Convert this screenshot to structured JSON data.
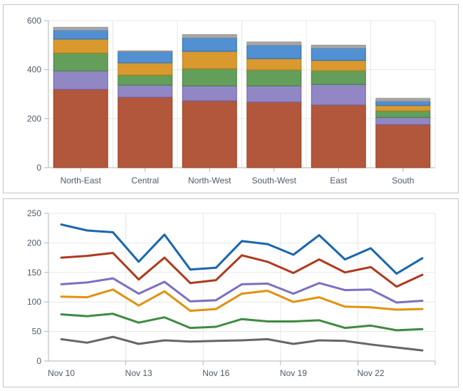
{
  "app": {
    "background": "#ffffff",
    "panel_border": "#c4c4c4",
    "gridline_color": "#e7e7e7",
    "axis_line_color": "#b5b5b5",
    "tick_color": "#b5b5b5",
    "label_color": "#4d5b6b",
    "label_font_size": 12
  },
  "chart_data": [
    {
      "type": "bar",
      "stacked": true,
      "title": "",
      "legend": "none",
      "grid": true,
      "categories": [
        "North-East",
        "Central",
        "North-West",
        "South-West",
        "East",
        "South"
      ],
      "series": [
        {
          "name": "rust",
          "color": "#b2573b",
          "border": "#99401e",
          "values": [
            320,
            288,
            273,
            268,
            256,
            176
          ]
        },
        {
          "name": "purple",
          "color": "#9187c4",
          "border": "#6f63ad",
          "values": [
            75,
            49,
            61,
            66,
            84,
            29
          ]
        },
        {
          "name": "green",
          "color": "#649e5b",
          "border": "#437e3c",
          "values": [
            73,
            41,
            70,
            65,
            56,
            27
          ]
        },
        {
          "name": "orange",
          "color": "#d9992f",
          "border": "#b97c13",
          "values": [
            57,
            50,
            71,
            46,
            42,
            22
          ]
        },
        {
          "name": "blue",
          "color": "#5090d3",
          "border": "#2e6cb4",
          "values": [
            36,
            45,
            55,
            55,
            50,
            17
          ]
        },
        {
          "name": "gray",
          "color": "#a8a8a8",
          "border": "#909090",
          "values": [
            12,
            4,
            13,
            13,
            12,
            12
          ]
        }
      ],
      "totals": [
        573,
        477,
        543,
        513,
        500,
        283
      ],
      "xlabel": "",
      "ylabel": "",
      "ylim": [
        0,
        600
      ],
      "yticks": [
        0,
        200,
        400,
        600
      ]
    },
    {
      "type": "line",
      "title": "",
      "legend": "none",
      "grid": true,
      "x": [
        "Nov 10",
        "Nov 11",
        "Nov 12",
        "Nov 13",
        "Nov 14",
        "Nov 15",
        "Nov 16",
        "Nov 17",
        "Nov 18",
        "Nov 19",
        "Nov 20",
        "Nov 21",
        "Nov 22",
        "Nov 23",
        "Nov 24"
      ],
      "xtick_labels": [
        "Nov 10",
        "Nov 13",
        "Nov 16",
        "Nov 19",
        "Nov 22"
      ],
      "xtick_label_step": 3,
      "series": [
        {
          "name": "blue",
          "color": "#1a66ae",
          "values": [
            231,
            221,
            218,
            168,
            214,
            155,
            158,
            203,
            198,
            180,
            213,
            172,
            191,
            148,
            174
          ]
        },
        {
          "name": "red",
          "color": "#ae3a1d",
          "values": [
            175,
            178,
            183,
            138,
            175,
            132,
            137,
            179,
            168,
            149,
            172,
            150,
            159,
            126,
            146
          ]
        },
        {
          "name": "purple",
          "color": "#7e6fc0",
          "values": [
            130,
            133,
            140,
            114,
            134,
            101,
            103,
            130,
            131,
            114,
            132,
            120,
            121,
            99,
            102
          ]
        },
        {
          "name": "orange",
          "color": "#e2920f",
          "values": [
            109,
            108,
            121,
            94,
            118,
            85,
            88,
            114,
            119,
            100,
            108,
            92,
            91,
            87,
            88
          ]
        },
        {
          "name": "green",
          "color": "#3d8c3f",
          "values": [
            79,
            76,
            80,
            65,
            74,
            56,
            58,
            71,
            67,
            67,
            69,
            56,
            60,
            52,
            54
          ]
        },
        {
          "name": "gray",
          "color": "#64666a",
          "values": [
            37,
            31,
            41,
            29,
            35,
            33,
            34,
            35,
            37,
            29,
            35,
            34,
            28,
            23,
            18
          ]
        }
      ],
      "xlabel": "",
      "ylabel": "",
      "ylim": [
        0,
        250
      ],
      "yticks": [
        0,
        50,
        100,
        150,
        200,
        250
      ]
    }
  ]
}
